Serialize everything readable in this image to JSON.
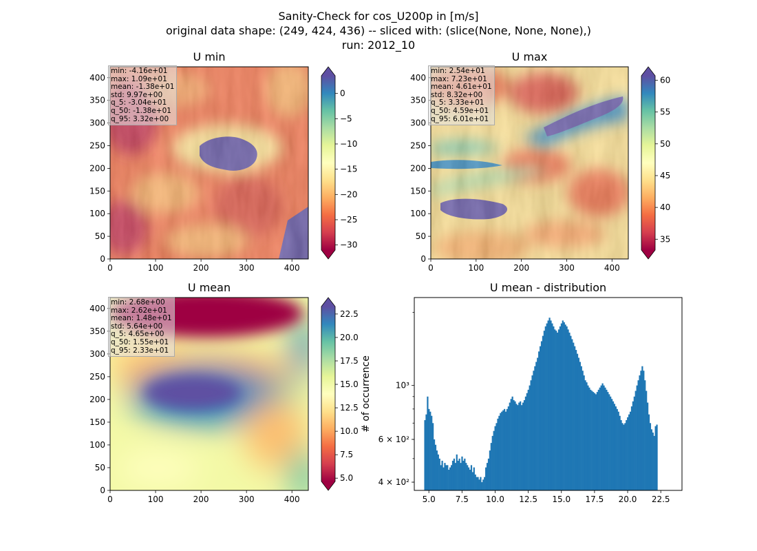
{
  "figure": {
    "title_lines": [
      "Sanity-Check for cos_U200p in [m/s]",
      "original data shape: (249, 424, 436) -- sliced with: (slice(None, None, None),)",
      "run: 2012_10"
    ]
  },
  "colors": {
    "hist_bar": "#1f77b4",
    "stats_box_bg": "#e6e6e6",
    "colormap": "Spectral"
  },
  "chart_data": [
    {
      "type": "heatmap",
      "title": "U min",
      "colormap": "Spectral",
      "xlim": [
        0,
        436
      ],
      "ylim": [
        0,
        424
      ],
      "xticks": [
        0,
        100,
        200,
        300,
        400
      ],
      "yticks": [
        0,
        50,
        100,
        150,
        200,
        250,
        300,
        350,
        400
      ],
      "colorbar": {
        "range": [
          -31,
          3.5
        ],
        "ticks": [
          0,
          -5,
          -10,
          -15,
          -20,
          -25,
          -30
        ],
        "tick_labels": [
          "0",
          "−5",
          "−10",
          "−15",
          "−20",
          "−25",
          "−30"
        ],
        "extend": "both"
      },
      "stats": [
        "min: -4.16e+01",
        "max: 1.09e+01",
        "mean: -1.38e+01",
        "std: 9.97e+00",
        "q_5: -3.04e+01",
        "q_50: -1.38e+01",
        "q_95: 3.32e+00"
      ]
    },
    {
      "type": "heatmap",
      "title": "U max",
      "colormap": "Spectral",
      "xlim": [
        0,
        436
      ],
      "ylim": [
        0,
        424
      ],
      "xticks": [
        0,
        100,
        200,
        300,
        400
      ],
      "yticks": [
        0,
        50,
        100,
        150,
        200,
        250,
        300,
        350,
        400
      ],
      "colorbar": {
        "range": [
          33.3,
          60.7
        ],
        "ticks": [
          60,
          55,
          50,
          45,
          40,
          35
        ],
        "tick_labels": [
          "60",
          "55",
          "50",
          "45",
          "40",
          "35"
        ],
        "extend": "both"
      },
      "stats": [
        "min: 2.54e+01",
        "max: 7.23e+01",
        "mean: 4.61e+01",
        "std: 8.32e+00",
        "q_5: 3.33e+01",
        "q_50: 4.59e+01",
        "q_95: 6.01e+01"
      ]
    },
    {
      "type": "heatmap",
      "title": "U mean",
      "colormap": "Spectral",
      "xlim": [
        0,
        436
      ],
      "ylim": [
        0,
        424
      ],
      "xticks": [
        0,
        100,
        200,
        300,
        400
      ],
      "yticks": [
        0,
        50,
        100,
        150,
        200,
        250,
        300,
        350,
        400
      ],
      "colorbar": {
        "range": [
          4.65,
          23.3
        ],
        "ticks": [
          22.5,
          20.0,
          17.5,
          15.0,
          12.5,
          10.0,
          7.5,
          5.0
        ],
        "tick_labels": [
          "22.5",
          "20.0",
          "17.5",
          "15.0",
          "12.5",
          "10.0",
          "7.5",
          "5.0"
        ],
        "extend": "both"
      },
      "stats": [
        "min: 2.68e+00",
        "max: 2.62e+01",
        "mean: 1.48e+01",
        "std: 5.64e+00",
        "q_5: 4.65e+00",
        "q_50: 1.55e+01",
        "q_95: 2.33e+01"
      ]
    },
    {
      "type": "bar",
      "title": "U mean - distribution",
      "ylabel": "# of occurrence",
      "y_scale": "log",
      "xlim": [
        3.9,
        24.1
      ],
      "ylim": [
        370,
        2300
      ],
      "xticks": [
        5.0,
        7.5,
        10.0,
        12.5,
        15.0,
        17.5,
        20.0,
        22.5
      ],
      "xtick_labels": [
        "5.0",
        "7.5",
        "10.0",
        "12.5",
        "15.0",
        "17.5",
        "20.0",
        "22.5"
      ],
      "ytick_major": [
        400,
        600,
        1000
      ],
      "ytick_labels": [
        "4 × 10²",
        "6 × 10²",
        "10³"
      ],
      "bin_range": [
        4.65,
        23.35
      ],
      "bin_width": 0.1,
      "counts": [
        720,
        760,
        900,
        800,
        780,
        750,
        700,
        600,
        570,
        540,
        520,
        500,
        470,
        490,
        460,
        480,
        470,
        470,
        450,
        460,
        470,
        490,
        500,
        480,
        520,
        490,
        500,
        480,
        510,
        490,
        500,
        480,
        470,
        460,
        450,
        470,
        440,
        460,
        430,
        420,
        420,
        410,
        420,
        400,
        410,
        420,
        460,
        480,
        500,
        540,
        580,
        620,
        650,
        680,
        700,
        730,
        750,
        770,
        780,
        790,
        800,
        780,
        800,
        820,
        850,
        880,
        900,
        870,
        860,
        840,
        830,
        850,
        860,
        830,
        850,
        870,
        900,
        930,
        960,
        1000,
        1050,
        1100,
        1150,
        1200,
        1250,
        1300,
        1380,
        1450,
        1520,
        1600,
        1680,
        1750,
        1800,
        1850,
        1900,
        1850,
        1800,
        1750,
        1700,
        1680,
        1650,
        1700,
        1750,
        1800,
        1850,
        1820,
        1780,
        1750,
        1700,
        1650,
        1600,
        1550,
        1500,
        1450,
        1400,
        1350,
        1300,
        1250,
        1200,
        1150,
        1100,
        1050,
        1030,
        1000,
        980,
        960,
        950,
        940,
        930,
        920,
        940,
        960,
        980,
        1000,
        1020,
        1000,
        980,
        960,
        940,
        920,
        900,
        880,
        860,
        840,
        820,
        800,
        780,
        750,
        720,
        700,
        690,
        700,
        720,
        740,
        760,
        780,
        820,
        860,
        900,
        950,
        1000,
        1050,
        1100,
        1150,
        1200,
        1150,
        1050,
        950,
        850,
        760,
        700,
        660,
        640,
        620,
        680,
        690
      ]
    }
  ]
}
